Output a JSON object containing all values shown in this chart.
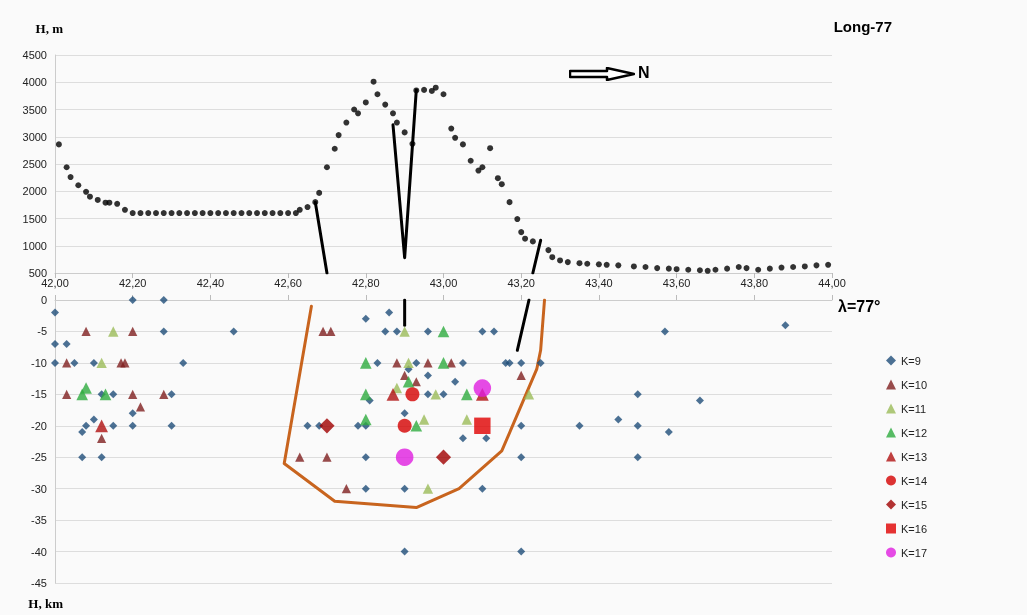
{
  "chart_data": [
    {
      "type": "scatter",
      "title": "Long-77",
      "ylabel": "H, m",
      "annotations": [
        "N"
      ],
      "grid": "y",
      "xlim": [
        42,
        44
      ],
      "ylim": [
        500,
        4500
      ],
      "xticks": [
        {
          "value": 42,
          "label": "42,00"
        },
        {
          "value": 42.2,
          "label": "42,20"
        },
        {
          "value": 42.4,
          "label": "42,40"
        },
        {
          "value": 42.6,
          "label": "42,60"
        },
        {
          "value": 42.8,
          "label": "42,80"
        },
        {
          "value": 43,
          "label": "43,00"
        },
        {
          "value": 43.2,
          "label": "43,20"
        },
        {
          "value": 43.4,
          "label": "43,40"
        },
        {
          "value": 43.6,
          "label": "43,60"
        },
        {
          "value": 43.8,
          "label": "43,80"
        },
        {
          "value": 44,
          "label": "44,00"
        }
      ],
      "yticks": [
        500,
        1000,
        1500,
        2000,
        2500,
        3000,
        3500,
        4000,
        4500
      ],
      "series": [
        {
          "marker": "circle",
          "color": "#000000",
          "x": [
            42.01,
            42.03,
            42.04,
            42.06,
            42.08,
            42.09,
            42.11,
            42.13,
            42.14,
            42.16,
            42.18,
            42.2,
            42.22,
            42.24,
            42.26,
            42.28,
            42.3,
            42.32,
            42.34,
            42.36,
            42.38,
            42.4,
            42.42,
            42.44,
            42.46,
            42.48,
            42.5,
            42.52,
            42.54,
            42.56,
            42.58,
            42.6,
            42.62,
            42.63,
            42.65,
            42.67,
            42.68,
            42.7,
            42.72,
            42.73,
            42.75,
            42.77,
            42.78,
            42.8,
            42.82,
            42.83,
            42.85,
            42.87,
            42.88,
            42.9,
            42.92,
            42.93,
            42.95,
            42.97,
            42.98,
            43,
            43.02,
            43.03,
            43.05,
            43.07,
            43.09,
            43.1,
            43.12,
            43.14,
            43.15,
            43.17,
            43.19,
            43.2,
            43.21,
            43.23,
            43.27,
            43.28,
            43.3,
            43.32,
            43.35,
            43.37,
            43.4,
            43.42,
            43.45,
            43.49,
            43.52,
            43.55,
            43.58,
            43.6,
            43.63,
            43.66,
            43.68,
            43.7,
            43.73,
            43.76,
            43.78,
            43.81,
            43.84,
            43.87,
            43.9,
            43.93,
            43.96,
            43.99
          ],
          "values": [
            2860,
            2440,
            2260,
            2110,
            1990,
            1900,
            1840,
            1790,
            1790,
            1770,
            1660,
            1600,
            1600,
            1600,
            1600,
            1600,
            1600,
            1600,
            1600,
            1600,
            1600,
            1600,
            1600,
            1600,
            1600,
            1600,
            1600,
            1600,
            1600,
            1600,
            1600,
            1600,
            1600,
            1660,
            1710,
            1800,
            1970,
            2440,
            2780,
            3030,
            3260,
            3500,
            3430,
            3630,
            4010,
            3780,
            3590,
            3430,
            3260,
            3080,
            2870,
            3850,
            3860,
            3840,
            3900,
            3780,
            3150,
            2980,
            2860,
            2560,
            2380,
            2440,
            2790,
            2240,
            2130,
            1800,
            1490,
            1250,
            1130,
            1080,
            920,
            790,
            730,
            700,
            680,
            670,
            660,
            650,
            640,
            620,
            610,
            590,
            580,
            570,
            560,
            550,
            540,
            560,
            580,
            610,
            590,
            560,
            580,
            600,
            610,
            620,
            640,
            650
          ]
        },
        {
          "type": "line",
          "marker": "none",
          "line_style": "solid",
          "color": "#000000",
          "x": [
            42.67,
            42.7
          ],
          "values": [
            1800,
            500
          ]
        },
        {
          "type": "line",
          "marker": "none",
          "line_style": "solid",
          "color": "#000000",
          "x": [
            42.87,
            42.9,
            42.93
          ],
          "values": [
            3220,
            780,
            3860
          ]
        },
        {
          "type": "line",
          "marker": "none",
          "line_style": "solid",
          "color": "#000000",
          "x": [
            43.25,
            43.23
          ],
          "values": [
            1100,
            500
          ]
        }
      ]
    },
    {
      "type": "scatter",
      "ylabel": "H, km",
      "annotations": [
        "λ=77°"
      ],
      "grid": "y",
      "legend": "right",
      "tick_labels": "y",
      "xlim": [
        42,
        44
      ],
      "ylim": [
        -45,
        0
      ],
      "xticks": [
        {
          "value": 42,
          "label": null
        },
        {
          "value": 42.2,
          "label": null
        },
        {
          "value": 42.4,
          "label": null
        },
        {
          "value": 42.6,
          "label": null
        },
        {
          "value": 42.8,
          "label": null
        },
        {
          "value": 43,
          "label": null
        },
        {
          "value": 43.2,
          "label": null
        },
        {
          "value": 43.4,
          "label": null
        },
        {
          "value": 43.6,
          "label": null
        },
        {
          "value": 43.8,
          "label": null
        },
        {
          "value": 44,
          "label": null
        }
      ],
      "yticks": [
        -45,
        -40,
        -35,
        -30,
        -25,
        -20,
        -15,
        -10,
        -5,
        0
      ],
      "series": [
        {
          "type": "line",
          "marker": "none",
          "line_style": "solid",
          "color": "#c8641e",
          "x": [
            42.66,
            42.59,
            42.72,
            42.93,
            43.04,
            43.15,
            43.24,
            43.25,
            43.26
          ],
          "values": [
            -1,
            -26,
            -32,
            -33,
            -30,
            -24,
            -11,
            -8,
            0
          ]
        },
        {
          "type": "line",
          "marker": "none",
          "line_style": "solid",
          "color": "#000000",
          "x": [
            42.9,
            42.9
          ],
          "values": [
            0,
            -4
          ]
        },
        {
          "type": "line",
          "marker": "none",
          "line_style": "solid",
          "color": "#000000",
          "x": [
            43.22,
            43.19
          ],
          "values": [
            0,
            -8
          ]
        },
        {
          "name": "K=9",
          "marker": "diamond",
          "color": "#1f4e79",
          "x": [
            42,
            42,
            42.03,
            42,
            42.05,
            42.1,
            42.12,
            42.15,
            42.3,
            42.07,
            42.08,
            42.1,
            42.15,
            42.2,
            42.3,
            42.2,
            42.07,
            42.12,
            42.2,
            42.28,
            42.28,
            42.46,
            42.33,
            42.8,
            42.86,
            42.85,
            42.88,
            42.96,
            43.1,
            43.13,
            42.83,
            42.93,
            43.05,
            43.16,
            42.91,
            42.96,
            43.03,
            42.81,
            42.96,
            43,
            42.9,
            42.65,
            42.68,
            42.78,
            42.8,
            43.05,
            43.11,
            42.8,
            42.8,
            42.9,
            43.1,
            42.9,
            43.17,
            43.2,
            43.25,
            43.57,
            43.88,
            43.5,
            43.66,
            43.2,
            43.35,
            43.45,
            43.5,
            43.58,
            43.2,
            43.5,
            43.2
          ],
          "values": [
            -2,
            -7,
            -7,
            -10,
            -10,
            -10,
            -15,
            -15,
            -15,
            -21,
            -20,
            -19,
            -20,
            -20,
            -20,
            -18,
            -25,
            -25,
            0,
            0,
            -5,
            -5,
            -10,
            -3,
            -2,
            -5,
            -5,
            -5,
            -5,
            -5,
            -10,
            -10,
            -10,
            -10,
            -11,
            -12,
            -13,
            -16,
            -15,
            -15,
            -18,
            -20,
            -20,
            -20,
            -20,
            -22,
            -22,
            -25,
            -30,
            -30,
            -30,
            -40,
            -10,
            -10,
            -10,
            -5,
            -4,
            -15,
            -16,
            -20,
            -20,
            -19,
            -20,
            -21,
            -25,
            -25,
            -40
          ]
        },
        {
          "name": "K=10",
          "marker": "triangle",
          "color": "#7f1f1f",
          "x": [
            42.08,
            42.2,
            42.03,
            42.17,
            42.18,
            42.03,
            42.2,
            42.28,
            42.22,
            42.12,
            42.69,
            42.71,
            42.88,
            42.9,
            42.96,
            43.02,
            42.63,
            42.7,
            42.75,
            42.93,
            43.2
          ],
          "values": [
            -5,
            -5,
            -10,
            -10,
            -10,
            -15,
            -15,
            -15,
            -17,
            -22,
            -5,
            -5,
            -10,
            -12,
            -10,
            -10,
            -25,
            -25,
            -30,
            -13,
            -12
          ]
        },
        {
          "name": "K=11",
          "marker": "triangle",
          "color": "#9bbb59",
          "x": [
            42.15,
            42.12,
            42.9,
            42.91,
            42.98,
            42.95,
            42.96,
            43.06,
            42.88,
            43.22
          ],
          "values": [
            -5,
            -10,
            -5,
            -10,
            -15,
            -19,
            -30,
            -19,
            -14,
            -15
          ]
        },
        {
          "name": "K=12",
          "marker": "triangle",
          "color": "#2eab3f",
          "x": [
            42.08,
            42.07,
            42.13,
            42.8,
            43,
            43,
            42.8,
            42.8,
            42.91,
            42.93,
            43.06
          ],
          "values": [
            -14,
            -15,
            -15,
            -10,
            -10,
            -5,
            -15,
            -19,
            -13,
            -20,
            -15
          ]
        },
        {
          "name": "K=13",
          "marker": "triangle",
          "color": "#b01010",
          "x": [
            42.87,
            42.12,
            43.1
          ],
          "values": [
            -15,
            -20,
            -15
          ]
        },
        {
          "name": "K=14",
          "marker": "circle",
          "color": "#d40000",
          "x": [
            42.9,
            42.92
          ],
          "values": [
            -20,
            -15
          ]
        },
        {
          "name": "K=15",
          "marker": "diamond",
          "color": "#a00000",
          "x": [
            43,
            42.7
          ],
          "values": [
            -25,
            -20
          ]
        },
        {
          "name": "K=16",
          "marker": "square",
          "color": "#e00000",
          "x": [
            43.1
          ],
          "values": [
            -20
          ]
        },
        {
          "name": "K=17",
          "marker": "circle",
          "color": "#e01ee0",
          "x": [
            43.1,
            42.9
          ],
          "values": [
            -14,
            -25
          ]
        }
      ]
    }
  ]
}
